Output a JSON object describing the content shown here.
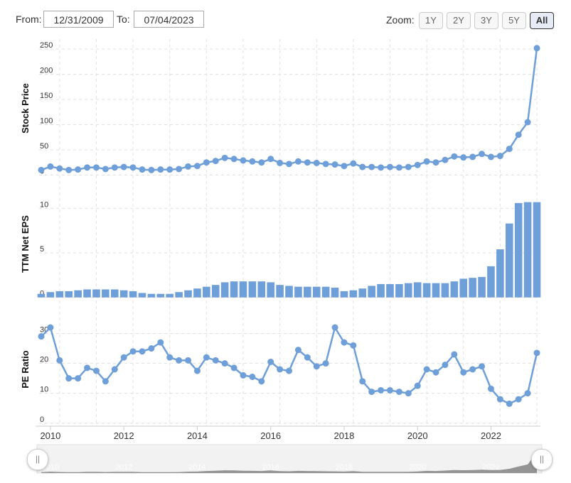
{
  "controls": {
    "from_label": "From:",
    "from_value": "12/31/2009",
    "to_label": "To:",
    "to_value": "07/04/2023",
    "zoom_label": "Zoom:",
    "zoom_options": [
      "1Y",
      "2Y",
      "3Y",
      "5Y",
      "All"
    ],
    "zoom_selected": "All"
  },
  "navigator": {
    "handle_left": "||",
    "handle_right": "||",
    "year_labels": [
      "2010",
      "2012",
      "2014",
      "2016",
      "2018",
      "2020",
      "2022"
    ]
  },
  "colors": {
    "series": "#6f9fd8",
    "bar": "#6f9fd8",
    "grid": "#e0e0e0",
    "navigator_fill": "#8a8a8a"
  },
  "chart_data": [
    {
      "type": "line",
      "ylabel": "Stock Price",
      "yticks": [
        0,
        50,
        100,
        150,
        200,
        250
      ],
      "ylim": [
        -5,
        270
      ],
      "x": [
        2009.75,
        2010,
        2010.25,
        2010.5,
        2010.75,
        2011,
        2011.25,
        2011.5,
        2011.75,
        2012,
        2012.25,
        2012.5,
        2012.75,
        2013,
        2013.25,
        2013.5,
        2013.75,
        2014,
        2014.25,
        2014.5,
        2014.75,
        2015,
        2015.25,
        2015.5,
        2015.75,
        2016,
        2016.25,
        2016.5,
        2016.75,
        2017,
        2017.25,
        2017.5,
        2017.75,
        2018,
        2018.25,
        2018.5,
        2018.75,
        2019,
        2019.25,
        2019.5,
        2019.75,
        2020,
        2020.25,
        2020.5,
        2020.75,
        2021,
        2021.25,
        2021.5,
        2021.75,
        2022,
        2022.25,
        2022.5,
        2022.75,
        2023,
        2023.25
      ],
      "values": [
        10,
        17,
        13,
        10,
        11,
        15,
        15,
        12,
        15,
        16,
        15,
        11,
        10,
        11,
        11,
        12,
        17,
        18,
        25,
        28,
        34,
        32,
        29,
        27,
        25,
        32,
        24,
        22,
        27,
        25,
        24,
        22,
        21,
        18,
        23,
        16,
        16,
        15,
        16,
        15,
        16,
        20,
        27,
        25,
        30,
        37,
        35,
        36,
        42,
        36,
        38,
        52,
        80,
        105,
        252
      ]
    },
    {
      "type": "bar",
      "ylabel": "TTM Net EPS",
      "yticks": [
        0,
        5,
        10
      ],
      "ylim": [
        -0.5,
        12.5
      ],
      "x": [
        2009.75,
        2010,
        2010.25,
        2010.5,
        2010.75,
        2011,
        2011.25,
        2011.5,
        2011.75,
        2012,
        2012.25,
        2012.5,
        2012.75,
        2013,
        2013.25,
        2013.5,
        2013.75,
        2014,
        2014.25,
        2014.5,
        2014.75,
        2015,
        2015.25,
        2015.5,
        2015.75,
        2016,
        2016.25,
        2016.5,
        2016.75,
        2017,
        2017.25,
        2017.5,
        2017.75,
        2018,
        2018.25,
        2018.5,
        2018.75,
        2019,
        2019.25,
        2019.5,
        2019.75,
        2020,
        2020.25,
        2020.5,
        2020.75,
        2021,
        2021.25,
        2021.5,
        2021.75,
        2022,
        2022.25,
        2022.5,
        2022.75,
        2023,
        2023.25
      ],
      "values": [
        0.4,
        0.6,
        0.7,
        0.7,
        0.8,
        0.9,
        0.9,
        0.9,
        0.9,
        0.8,
        0.7,
        0.5,
        0.4,
        0.4,
        0.4,
        0.6,
        0.8,
        1.0,
        1.2,
        1.4,
        1.7,
        1.8,
        1.8,
        1.8,
        1.8,
        1.7,
        1.4,
        1.3,
        1.2,
        1.2,
        1.2,
        1.2,
        1.1,
        0.7,
        0.8,
        1.0,
        1.3,
        1.5,
        1.5,
        1.5,
        1.6,
        1.7,
        1.6,
        1.6,
        1.6,
        1.8,
        2.1,
        2.2,
        2.3,
        3.5,
        5.4,
        8.3,
        10.6,
        10.7,
        10.7
      ]
    },
    {
      "type": "line",
      "ylabel": "PE Ratio",
      "yticks": [
        0,
        10,
        20,
        30
      ],
      "ylim": [
        -1,
        37
      ],
      "x": [
        2009.75,
        2010,
        2010.25,
        2010.5,
        2010.75,
        2011,
        2011.25,
        2011.5,
        2011.75,
        2012,
        2012.25,
        2012.5,
        2012.75,
        2013,
        2013.25,
        2013.5,
        2013.75,
        2014,
        2014.25,
        2014.5,
        2014.75,
        2015,
        2015.25,
        2015.5,
        2015.75,
        2016,
        2016.25,
        2016.5,
        2016.75,
        2017,
        2017.25,
        2017.5,
        2017.75,
        2018,
        2018.25,
        2018.5,
        2018.75,
        2019,
        2019.25,
        2019.5,
        2019.75,
        2020,
        2020.25,
        2020.5,
        2020.75,
        2021,
        2021.25,
        2021.5,
        2021.75,
        2022,
        2022.25,
        2022.5,
        2022.75,
        2023,
        2023.25
      ],
      "values": [
        29,
        32,
        21,
        15,
        15,
        18.5,
        17.5,
        14,
        18,
        22,
        24,
        24,
        25,
        27,
        22,
        21,
        21,
        17.5,
        22,
        21,
        20,
        18.5,
        16,
        15.5,
        14,
        20.5,
        18,
        17.5,
        24.5,
        22,
        19,
        20,
        32,
        27,
        26,
        14,
        10.5,
        11,
        11,
        10.5,
        10,
        12.5,
        18,
        17,
        19.5,
        23,
        17,
        18,
        19,
        11.5,
        8,
        6.5,
        8,
        10,
        23.5
      ]
    }
  ],
  "x_axis": {
    "ticks": [
      2010,
      2012,
      2014,
      2016,
      2018,
      2020,
      2022
    ]
  }
}
